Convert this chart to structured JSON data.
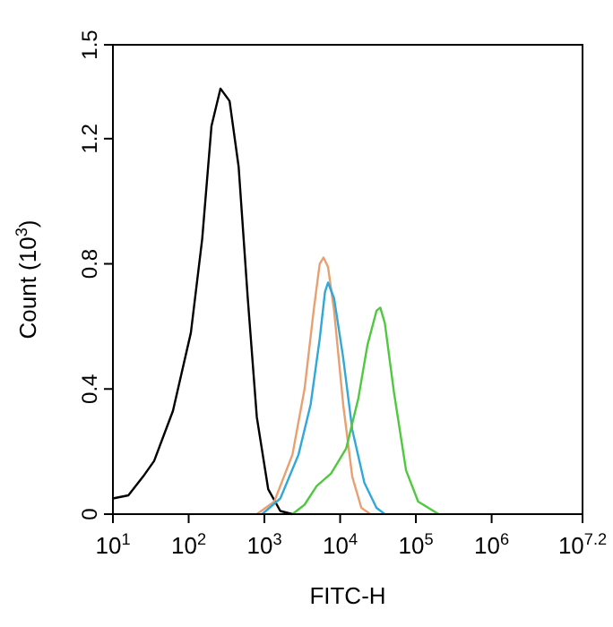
{
  "chart_data": {
    "type": "line",
    "xlabel": "FITC-H",
    "ylabel": "Count (10$^{3}$)",
    "log": "x",
    "grid": false,
    "line_style": "solid",
    "xlim": [
      10,
      15848932
    ],
    "xticks": [
      {
        "value": 10,
        "label": "10$^{1}$"
      },
      {
        "value": 100,
        "label": "10$^{2}$"
      },
      {
        "value": 1000,
        "label": "10$^{3}$"
      },
      {
        "value": 10000,
        "label": "10$^{4}$"
      },
      {
        "value": 100000,
        "label": "10$^{5}$"
      },
      {
        "value": 1000000,
        "label": "10$^{6}$"
      },
      {
        "value": 15848932,
        "label": "10$^{7.2}$"
      }
    ],
    "ylim": [
      0,
      1.5
    ],
    "yticks": [
      0,
      0.4,
      0.8,
      1.2,
      1.5
    ],
    "series": [
      {
        "color": "#000000",
        "x": [
          10,
          16,
          25,
          35,
          62,
          107,
          151,
          200,
          263,
          347,
          457,
          603,
          794,
          1122,
          1622,
          2344
        ],
        "values": [
          0.05,
          0.06,
          0.12,
          0.17,
          0.33,
          0.58,
          0.88,
          1.24,
          1.36,
          1.32,
          1.11,
          0.69,
          0.31,
          0.08,
          0.01,
          0
        ]
      },
      {
        "color": "#e8a070",
        "x": [
          794,
          1349,
          2344,
          3388,
          4467,
          5370,
          6026,
          6918,
          8318,
          10965,
          14454,
          19055,
          25119
        ],
        "values": [
          0,
          0.04,
          0.19,
          0.4,
          0.65,
          0.8,
          0.82,
          0.79,
          0.65,
          0.35,
          0.12,
          0.02,
          0
        ]
      },
      {
        "color": "#30a8d8",
        "x": [
          933,
          1622,
          2818,
          4074,
          5370,
          6310,
          6918,
          8318,
          10965,
          14454,
          20893,
          30200,
          38905
        ],
        "values": [
          0,
          0.05,
          0.19,
          0.35,
          0.56,
          0.71,
          0.74,
          0.69,
          0.5,
          0.27,
          0.1,
          0.02,
          0
        ]
      },
      {
        "color": "#50c840",
        "x": [
          2344,
          3388,
          4898,
          7586,
          12023,
          17378,
          22909,
          30200,
          33884,
          38905,
          51286,
          74131,
          107152,
          199526
        ],
        "values": [
          0,
          0.03,
          0.09,
          0.13,
          0.21,
          0.37,
          0.54,
          0.65,
          0.66,
          0.61,
          0.39,
          0.14,
          0.04,
          0
        ]
      }
    ]
  }
}
